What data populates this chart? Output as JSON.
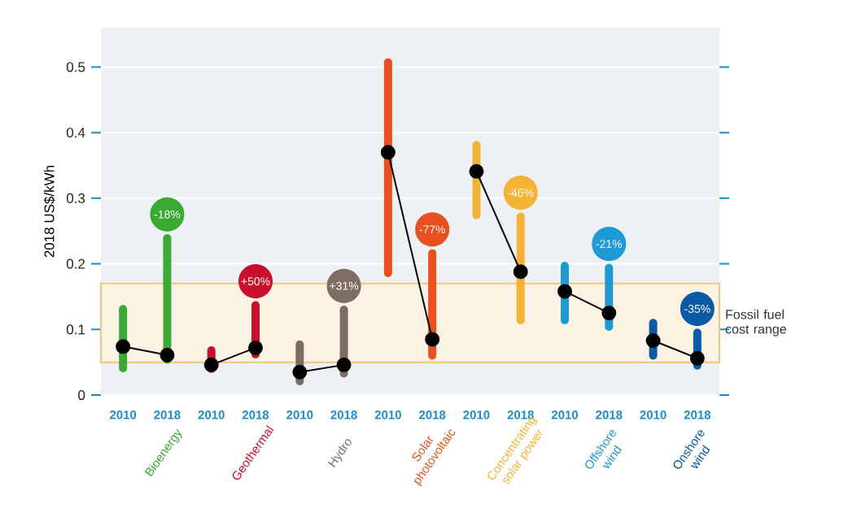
{
  "chart_data": {
    "type": "bar",
    "ylabel": "2018 US$/kWh",
    "categories": [
      "2010",
      "2018",
      "2010",
      "2018",
      "2010",
      "2018",
      "2010",
      "2018",
      "2010",
      "2018",
      "2010",
      "2018",
      "2010",
      "2018"
    ],
    "series": [
      {
        "colors": [
          "#3aaa35",
          "#3aaa35",
          "#c8102e",
          "#c8102e",
          "#7d6e63",
          "#7d6e63",
          "#e8501f",
          "#e8501f",
          "#f5b335",
          "#f5b335",
          "#1e9ad6",
          "#1e9ad6",
          "#0b5aa6",
          "#0b5aa6"
        ],
        "base": [
          0.041,
          0.054,
          0.04,
          0.062,
          0.021,
          0.033,
          0.186,
          0.06,
          0.274,
          0.114,
          0.114,
          0.104,
          0.06,
          0.045
        ],
        "values": [
          0.09,
          0.185,
          0.028,
          0.075,
          0.056,
          0.097,
          0.321,
          0.156,
          0.107,
          0.158,
          0.083,
          0.09,
          0.05,
          0.05
        ]
      },
      {
        "type": "line",
        "color": "#000000",
        "values": [
          0.074,
          0.061,
          null,
          null,
          null,
          null,
          null,
          null,
          null,
          null,
          null,
          null,
          null,
          null
        ]
      },
      {
        "type": "line",
        "color": "#000000",
        "values": [
          null,
          null,
          0.046,
          0.072,
          null,
          null,
          null,
          null,
          null,
          null,
          null,
          null,
          null,
          null
        ]
      },
      {
        "type": "line",
        "color": "#000000",
        "values": [
          null,
          null,
          null,
          null,
          0.035,
          0.046,
          null,
          null,
          null,
          null,
          null,
          null,
          null,
          null
        ]
      },
      {
        "type": "line",
        "color": "#000000",
        "values": [
          null,
          null,
          null,
          null,
          null,
          null,
          0.37,
          0.085,
          null,
          null,
          null,
          null,
          null,
          null
        ]
      },
      {
        "type": "line",
        "color": "#000000",
        "values": [
          null,
          null,
          null,
          null,
          null,
          null,
          null,
          null,
          0.341,
          0.188,
          null,
          null,
          null,
          null
        ]
      },
      {
        "type": "line",
        "color": "#000000",
        "values": [
          null,
          null,
          null,
          null,
          null,
          null,
          null,
          null,
          null,
          null,
          0.158,
          0.125,
          null,
          null
        ]
      },
      {
        "type": "line",
        "color": "#000000",
        "values": [
          null,
          null,
          null,
          null,
          null,
          null,
          null,
          null,
          null,
          null,
          null,
          null,
          0.083,
          0.056
        ]
      }
    ],
    "marker": "circle",
    "ylim": [
      0,
      0.56
    ],
    "yticks": [
      0,
      0.1,
      0.2,
      0.3,
      0.4,
      0.5
    ],
    "grid": "y",
    "bands": [
      {
        "axis": "y",
        "from": 0.05,
        "to": 0.17,
        "label": "Fossil fuel cost range",
        "color": "#f5c27a"
      }
    ],
    "annotations": [
      "Bioenergy",
      "Geothermal",
      "Hydro",
      "Solar photovoltaic",
      "Concentrating solar power",
      "Offshore wind",
      "Onshore wind",
      "-18%",
      "+50%",
      "+31%",
      "-77%",
      "-46%",
      "-21%",
      "-35%"
    ]
  }
}
